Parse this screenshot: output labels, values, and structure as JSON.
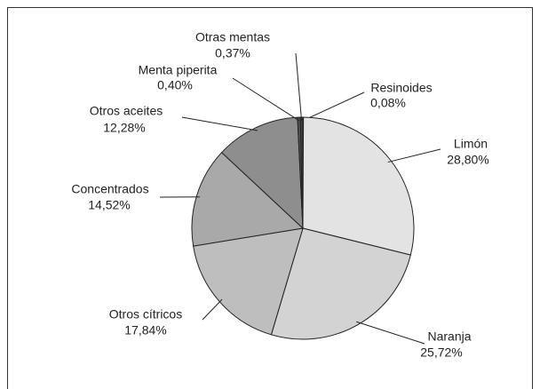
{
  "chart_data": {
    "type": "pie",
    "categories": [
      "Resinoides",
      "Limón",
      "Naranja",
      "Otros cítricos",
      "Concentrados",
      "Otros aceites",
      "Menta piperita",
      "Otras mentas"
    ],
    "values": [
      0.08,
      28.8,
      25.72,
      17.84,
      14.52,
      12.28,
      0.4,
      0.37
    ],
    "value_labels": [
      "0,08%",
      "28,80%",
      "25,72%",
      "17,84%",
      "14,52%",
      "12,28%",
      "0,40%",
      "0,37%"
    ],
    "colors": [
      "#3a3a3a",
      "#e3e3e3",
      "#d3d3d3",
      "#bebebe",
      "#a9a9a9",
      "#8e8e8e",
      "#555555",
      "#444444"
    ]
  }
}
